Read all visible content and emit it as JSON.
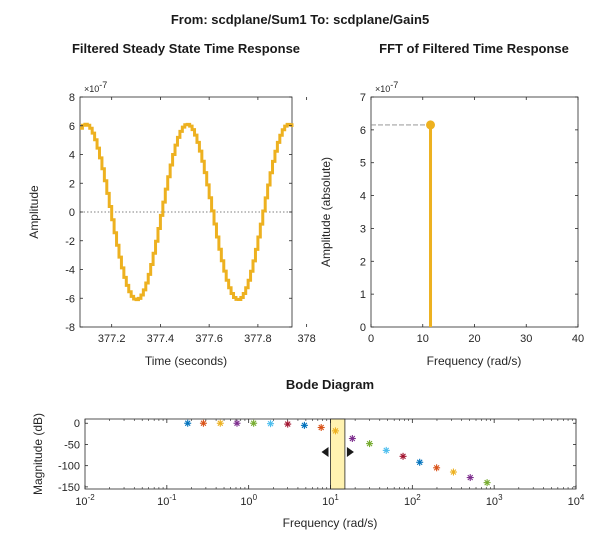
{
  "figure": {
    "suptitle": "From: scdplane/Sum1  To: scdplane/Gain5"
  },
  "chart_data": [
    {
      "type": "line",
      "title": "Filtered Steady State Time Response",
      "xlabel": "Time (seconds)",
      "ylabel": "Amplitude",
      "exponent_label": "×10",
      "exponent_power": "-7",
      "xlim": [
        377.07,
        377.94
      ],
      "ylim": [
        -8,
        8
      ],
      "xticks": [
        377.2,
        377.4,
        377.6,
        377.8,
        378
      ],
      "xtick_labels": [
        "377.2",
        "377.4",
        "377.6",
        "377.8",
        "378"
      ],
      "yticks": [
        -8,
        -6,
        -4,
        -2,
        0,
        2,
        4,
        6,
        8
      ],
      "ytick_labels": [
        "-8",
        "-6",
        "-4",
        "-2",
        "0",
        "2",
        "4",
        "6",
        "8"
      ],
      "line_color": "#EDB120",
      "zero_line": true,
      "series": [
        {
          "amplitude": 6.1,
          "period": 0.4167,
          "peak_times": [
            377.09,
            377.51
          ],
          "trough_times": [
            377.3,
            377.72
          ],
          "step": 0.01
        }
      ]
    },
    {
      "type": "stem",
      "title": "FFT of Filtered Time Response",
      "xlabel": "Frequency (rad/s)",
      "ylabel": "Amplitude (absolute)",
      "exponent_label": "×10",
      "exponent_power": "-7",
      "xlim": [
        0,
        40
      ],
      "ylim": [
        0,
        7
      ],
      "xticks": [
        0,
        10,
        20,
        30,
        40
      ],
      "xtick_labels": [
        "0",
        "10",
        "20",
        "30",
        "40"
      ],
      "yticks": [
        0,
        1,
        2,
        3,
        4,
        5,
        6,
        7
      ],
      "ytick_labels": [
        "0",
        "1",
        "2",
        "3",
        "4",
        "5",
        "6",
        "7"
      ],
      "line_color": "#EDB120",
      "points": [
        {
          "x": 11.5,
          "y": 6.15
        }
      ]
    },
    {
      "type": "scatter",
      "title": "Bode Diagram",
      "xlabel": "Frequency (rad/s)",
      "ylabel": "Magnitude (dB)",
      "xscale": "log",
      "xlim": [
        0.01,
        10000
      ],
      "ylim": [
        -155,
        10
      ],
      "xticks": [
        0.01,
        0.1,
        1,
        10,
        100,
        1000,
        10000
      ],
      "xtick_base": "10",
      "xtick_powers": [
        "-2",
        "-1",
        "0",
        "1",
        "2",
        "3",
        "4"
      ],
      "yticks": [
        0,
        -50,
        -100,
        -150
      ],
      "ytick_labels": [
        "0",
        "-50",
        "-100",
        "-150"
      ],
      "band": {
        "low": 10,
        "high": 15,
        "color": "#FFF2B0"
      },
      "points": [
        {
          "x": 0.18,
          "y": 0,
          "color": "#0072BD"
        },
        {
          "x": 0.28,
          "y": 0,
          "color": "#D95319"
        },
        {
          "x": 0.45,
          "y": 0,
          "color": "#EDB120"
        },
        {
          "x": 0.72,
          "y": 0,
          "color": "#7E2F8E"
        },
        {
          "x": 1.15,
          "y": 0,
          "color": "#77AC30"
        },
        {
          "x": 1.85,
          "y": -1,
          "color": "#4DBEEE"
        },
        {
          "x": 3.0,
          "y": -2,
          "color": "#A2142F"
        },
        {
          "x": 4.8,
          "y": -5,
          "color": "#0072BD"
        },
        {
          "x": 7.7,
          "y": -10,
          "color": "#D95319"
        },
        {
          "x": 11.5,
          "y": -18,
          "color": "#EDB120"
        },
        {
          "x": 18.5,
          "y": -36,
          "color": "#7E2F8E"
        },
        {
          "x": 30,
          "y": -48,
          "color": "#77AC30"
        },
        {
          "x": 48,
          "y": -64,
          "color": "#4DBEEE"
        },
        {
          "x": 77,
          "y": -78,
          "color": "#A2142F"
        },
        {
          "x": 123,
          "y": -92,
          "color": "#0072BD"
        },
        {
          "x": 198,
          "y": -105,
          "color": "#D95319"
        },
        {
          "x": 318,
          "y": -115,
          "color": "#EDB120"
        },
        {
          "x": 510,
          "y": -128,
          "color": "#7E2F8E"
        },
        {
          "x": 820,
          "y": -140,
          "color": "#77AC30"
        }
      ]
    }
  ]
}
